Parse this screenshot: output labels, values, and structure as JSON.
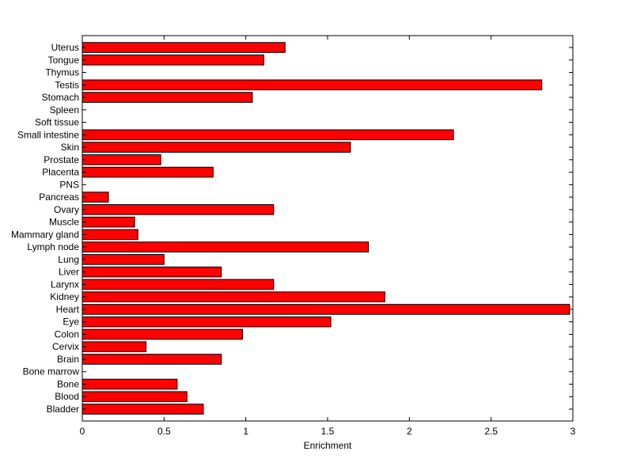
{
  "chart_data": {
    "type": "bar",
    "orientation": "horizontal",
    "title": "",
    "xlabel": "Enrichment",
    "ylabel": "",
    "xlim": [
      0,
      3
    ],
    "xticks": [
      0,
      0.5,
      1,
      1.5,
      2,
      2.5,
      3
    ],
    "xtick_labels": [
      "0",
      "0.5",
      "1",
      "1.5",
      "2",
      "2.5",
      "3"
    ],
    "grid": false,
    "legend": "none",
    "bar_color": "#ff0000",
    "bar_edge_color": "#000000",
    "categories": [
      "Bladder",
      "Blood",
      "Bone",
      "Bone marrow",
      "Brain",
      "Cervix",
      "Colon",
      "Eye",
      "Heart",
      "Kidney",
      "Larynx",
      "Liver",
      "Lung",
      "Lymph node",
      "Mammary gland",
      "Muscle",
      "Ovary",
      "Pancreas",
      "PNS",
      "Placenta",
      "Prostate",
      "Skin",
      "Small intestine",
      "Soft tissue",
      "Spleen",
      "Stomach",
      "Testis",
      "Thymus",
      "Tongue",
      "Uterus"
    ],
    "values": [
      0.74,
      0.64,
      0.58,
      0,
      0.85,
      0.39,
      0.98,
      1.52,
      2.98,
      1.85,
      1.17,
      0.85,
      0.5,
      1.75,
      0.34,
      0.32,
      1.17,
      0.16,
      0,
      0.8,
      0.48,
      1.64,
      2.27,
      0,
      0,
      1.04,
      2.81,
      0,
      1.11,
      1.24
    ]
  }
}
